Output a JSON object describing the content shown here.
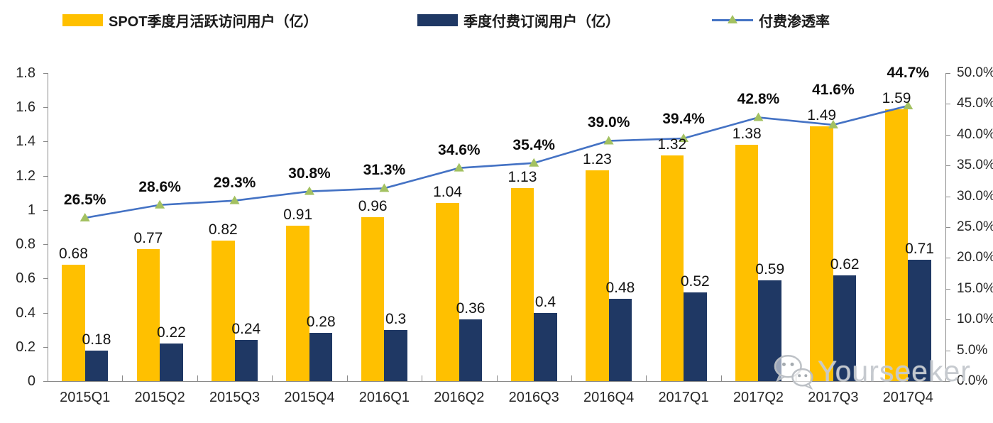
{
  "legend": [
    {
      "label": "SPOT季度月活跃访问用户（亿）",
      "swatch": "bar",
      "color": "#FFC000"
    },
    {
      "label": "季度付费订阅用户（亿）",
      "swatch": "bar",
      "color": "#1F3864"
    },
    {
      "label": "付费渗透率",
      "swatch": "line",
      "color": "#4472C4",
      "marker_color": "#A3C161"
    }
  ],
  "chart_data": {
    "type": "bar",
    "subtype": "bar-line-combo",
    "categories": [
      "2015Q1",
      "2015Q2",
      "2015Q3",
      "2015Q4",
      "2016Q1",
      "2016Q2",
      "2016Q3",
      "2016Q4",
      "2017Q1",
      "2017Q2",
      "2017Q3",
      "2017Q4"
    ],
    "series": [
      {
        "name": "SPOT季度月活跃访问用户（亿）",
        "type": "bar",
        "axis": "left",
        "color": "#FFC000",
        "values": [
          0.68,
          0.77,
          0.82,
          0.91,
          0.96,
          1.04,
          1.13,
          1.23,
          1.32,
          1.38,
          1.49,
          1.59
        ],
        "value_labels": [
          "0.68",
          "0.77",
          "0.82",
          "0.91",
          "0.96",
          "1.04",
          "1.13",
          "1.23",
          "1.32",
          "1.38",
          "1.49",
          "1.59"
        ]
      },
      {
        "name": "季度付费订阅用户（亿）",
        "type": "bar",
        "axis": "left",
        "color": "#1F3864",
        "values": [
          0.18,
          0.22,
          0.24,
          0.28,
          0.3,
          0.36,
          0.4,
          0.48,
          0.52,
          0.59,
          0.62,
          0.71
        ],
        "value_labels": [
          "0.18",
          "0.22",
          "0.24",
          "0.28",
          "0.3",
          "0.36",
          "0.4",
          "0.48",
          "0.52",
          "0.59",
          "0.62",
          "0.71"
        ]
      },
      {
        "name": "付费渗透率",
        "type": "line",
        "axis": "right",
        "color": "#4472C4",
        "marker": "triangle",
        "marker_color": "#A3C161",
        "values": [
          26.5,
          28.6,
          29.3,
          30.8,
          31.3,
          34.6,
          35.4,
          39.0,
          39.4,
          42.8,
          41.6,
          44.7
        ],
        "value_labels": [
          "26.5%",
          "28.6%",
          "29.3%",
          "30.8%",
          "31.3%",
          "34.6%",
          "35.4%",
          "39.0%",
          "39.4%",
          "42.8%",
          "41.6%",
          "44.7%"
        ]
      }
    ],
    "left_axis": {
      "min": 0,
      "max": 1.8,
      "step": 0.2,
      "ticks": [
        "0",
        "0.2",
        "0.4",
        "0.6",
        "0.8",
        "1",
        "1.2",
        "1.4",
        "1.6",
        "1.8"
      ]
    },
    "right_axis": {
      "min": 0,
      "max": 50,
      "step": 5,
      "ticks": [
        "0.0%",
        "5.0%",
        "10.0%",
        "15.0%",
        "20.0%",
        "25.0%",
        "30.0%",
        "35.0%",
        "40.0%",
        "45.0%",
        "50.0%"
      ]
    },
    "grid": false,
    "legend_position": "top"
  },
  "watermark": {
    "text": "Yourseeker",
    "icon": "wechat-icon"
  }
}
